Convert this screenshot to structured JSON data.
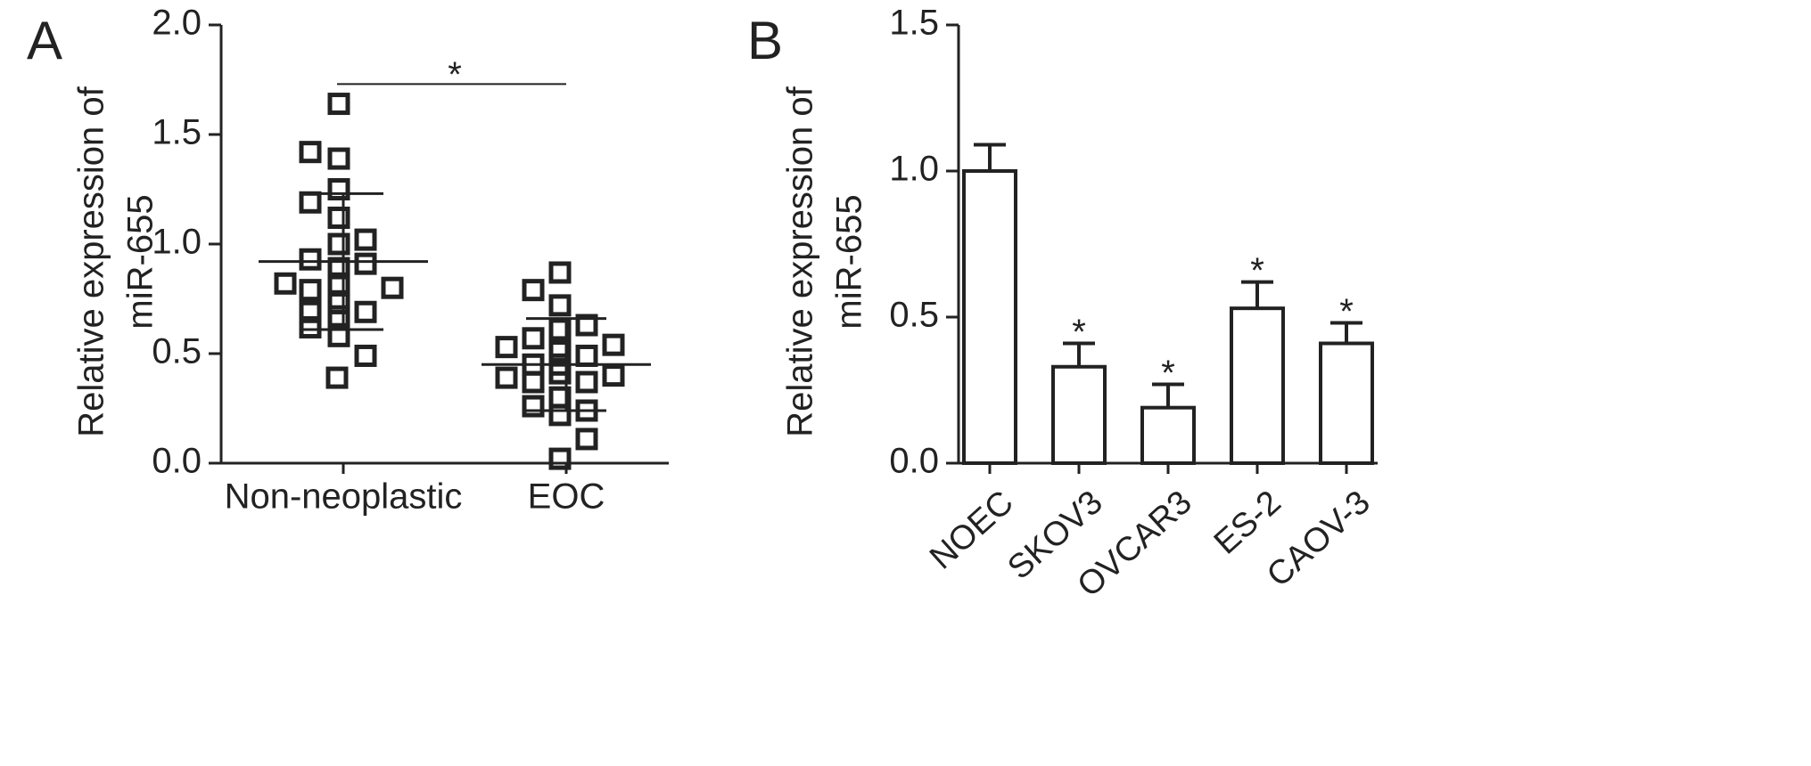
{
  "chart_data": [
    {
      "type": "dotplot",
      "panel": "A",
      "ylabel": [
        "Relative expression of",
        "miR-655"
      ],
      "categories": [
        "Non-neoplastic",
        "EOC"
      ],
      "points": [
        [
          1.64,
          1.42,
          1.39,
          1.25,
          1.19,
          1.12,
          1.0,
          1.02,
          0.93,
          0.89,
          0.91,
          0.82,
          0.79,
          0.82,
          0.8,
          0.73,
          0.69,
          0.69,
          0.67,
          0.62,
          0.58,
          0.49,
          0.39
        ],
        [
          0.87,
          0.79,
          0.72,
          0.57,
          0.61,
          0.63,
          0.53,
          0.54,
          0.51,
          0.45,
          0.45,
          0.49,
          0.39,
          0.37,
          0.41,
          0.4,
          0.37,
          0.26,
          0.3,
          0.24,
          0.22,
          0.11,
          0.02
        ]
      ],
      "mean": [
        0.92,
        0.45
      ],
      "sd": [
        0.31,
        0.21
      ],
      "significance": "*",
      "significance_y": 1.73,
      "color": "#222222",
      "ylim": [
        0,
        2
      ],
      "yticks": [
        {
          "value": 0,
          "label": "0.0"
        },
        {
          "value": 0.5,
          "label": "0.5"
        },
        {
          "value": 1,
          "label": "1.0"
        },
        {
          "value": 1.5,
          "label": "1.5"
        },
        {
          "value": 2,
          "label": "2.0"
        }
      ]
    },
    {
      "type": "bar",
      "panel": "B",
      "ylabel": [
        "Relative expression of",
        "miR-655"
      ],
      "categories": [
        "NOEC",
        "SKOV3",
        "OVCAR3",
        "ES-2",
        "CAOV-3"
      ],
      "values": [
        1.0,
        0.33,
        0.19,
        0.53,
        0.41
      ],
      "errors": [
        0.09,
        0.08,
        0.08,
        0.09,
        0.07
      ],
      "significance": [
        null,
        "*",
        "*",
        "*",
        "*"
      ],
      "color": "#222222",
      "ylim": [
        0,
        1.5
      ],
      "yticks": [
        {
          "value": 0,
          "label": "0.0"
        },
        {
          "value": 0.5,
          "label": "0.5"
        },
        {
          "value": 1,
          "label": "1.0"
        },
        {
          "value": 1.5,
          "label": "1.5"
        }
      ]
    }
  ]
}
